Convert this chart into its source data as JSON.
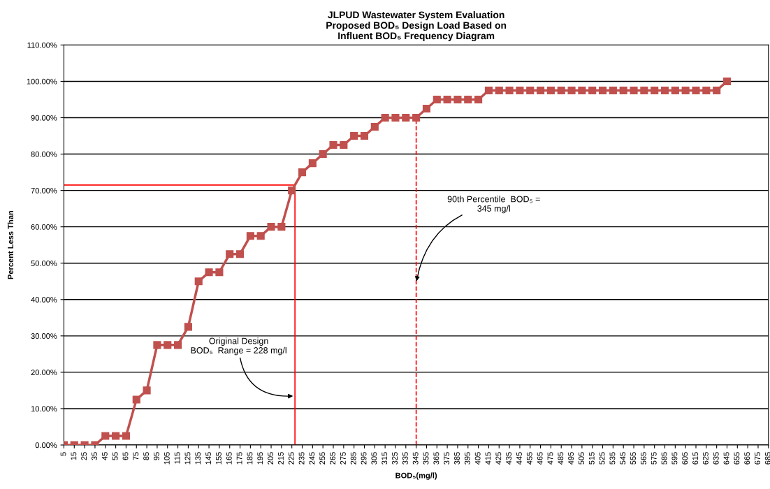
{
  "chart_data": {
    "type": "line",
    "title": "JLPUD Wastewater System Evaluation\nProposed BOD₅ Design Load Based on\nInfluent BOD₅ Frequency Diagram",
    "xlabel": "BOD₅(mg/l)",
    "ylabel": "Percent Less Than",
    "x": [
      5,
      15,
      25,
      35,
      45,
      55,
      65,
      75,
      85,
      95,
      105,
      115,
      125,
      135,
      145,
      155,
      165,
      175,
      185,
      195,
      205,
      215,
      225,
      235,
      245,
      255,
      265,
      275,
      285,
      295,
      305,
      315,
      325,
      335,
      345,
      355,
      365,
      375,
      385,
      395,
      405,
      415,
      425,
      435,
      445,
      455,
      465,
      475,
      485,
      495,
      505,
      515,
      525,
      535,
      545,
      555,
      565,
      575,
      585,
      595,
      605,
      615,
      625,
      635,
      645
    ],
    "series": [
      {
        "color": "#c0504d",
        "values": [
          0,
          0,
          0,
          0,
          2.5,
          2.5,
          2.5,
          12.5,
          15,
          27.5,
          27.5,
          27.5,
          32.5,
          45,
          47.5,
          47.5,
          52.5,
          52.5,
          57.5,
          57.5,
          60,
          60,
          70,
          75,
          77.5,
          80,
          82.5,
          82.5,
          85,
          85,
          87.5,
          90,
          90,
          90,
          90,
          92.5,
          95,
          95,
          95,
          95,
          95,
          97.5,
          97.5,
          97.5,
          97.5,
          97.5,
          97.5,
          97.5,
          97.5,
          97.5,
          97.5,
          97.5,
          97.5,
          97.5,
          97.5,
          97.5,
          97.5,
          97.5,
          97.5,
          97.5,
          97.5,
          97.5,
          97.5,
          97.5,
          100
        ]
      }
    ],
    "xlim": [
      5,
      685
    ],
    "xticks": [
      5,
      15,
      25,
      35,
      45,
      55,
      65,
      75,
      85,
      95,
      105,
      115,
      125,
      135,
      145,
      155,
      165,
      175,
      185,
      195,
      205,
      215,
      225,
      235,
      245,
      255,
      265,
      275,
      285,
      295,
      305,
      315,
      325,
      335,
      345,
      355,
      365,
      375,
      385,
      395,
      405,
      415,
      425,
      435,
      445,
      455,
      465,
      475,
      485,
      495,
      505,
      515,
      525,
      535,
      545,
      555,
      565,
      575,
      585,
      595,
      605,
      615,
      625,
      635,
      645,
      655,
      665,
      675,
      685
    ],
    "ylim": [
      0,
      110
    ],
    "yticks": [
      {
        "value": 0,
        "label": "0.00%"
      },
      {
        "value": 10,
        "label": "10.00%"
      },
      {
        "value": 20,
        "label": "20.00%"
      },
      {
        "value": 30,
        "label": "30.00%"
      },
      {
        "value": 40,
        "label": "40.00%"
      },
      {
        "value": 50,
        "label": "50.00%"
      },
      {
        "value": 60,
        "label": "60.00%"
      },
      {
        "value": 70,
        "label": "70.00%"
      },
      {
        "value": 80,
        "label": "80.00%"
      },
      {
        "value": 90,
        "label": "90.00%"
      },
      {
        "value": 100,
        "label": "100.00%"
      },
      {
        "value": 110,
        "label": "110.00%"
      }
    ],
    "ref_lines": [
      {
        "axis": "x",
        "value": 228,
        "color": "#ff0000",
        "line_style": "solid"
      },
      {
        "axis": "y",
        "value": 71.5,
        "color": "#ff0000",
        "line_style": "solid"
      },
      {
        "axis": "x",
        "value": 345,
        "color": "#ff0000",
        "line_style": "dashed"
      }
    ],
    "annotations": [
      {
        "text": "Original Design\nBOD₅  Range = 228 mg/l",
        "x": 228,
        "y": 13.5
      },
      {
        "text": "90th Percentile  BOD₅ =\n345 mg/l",
        "x": 345,
        "y": 44.5
      }
    ],
    "grid": "y",
    "marker": "square",
    "line_style": "solid"
  }
}
